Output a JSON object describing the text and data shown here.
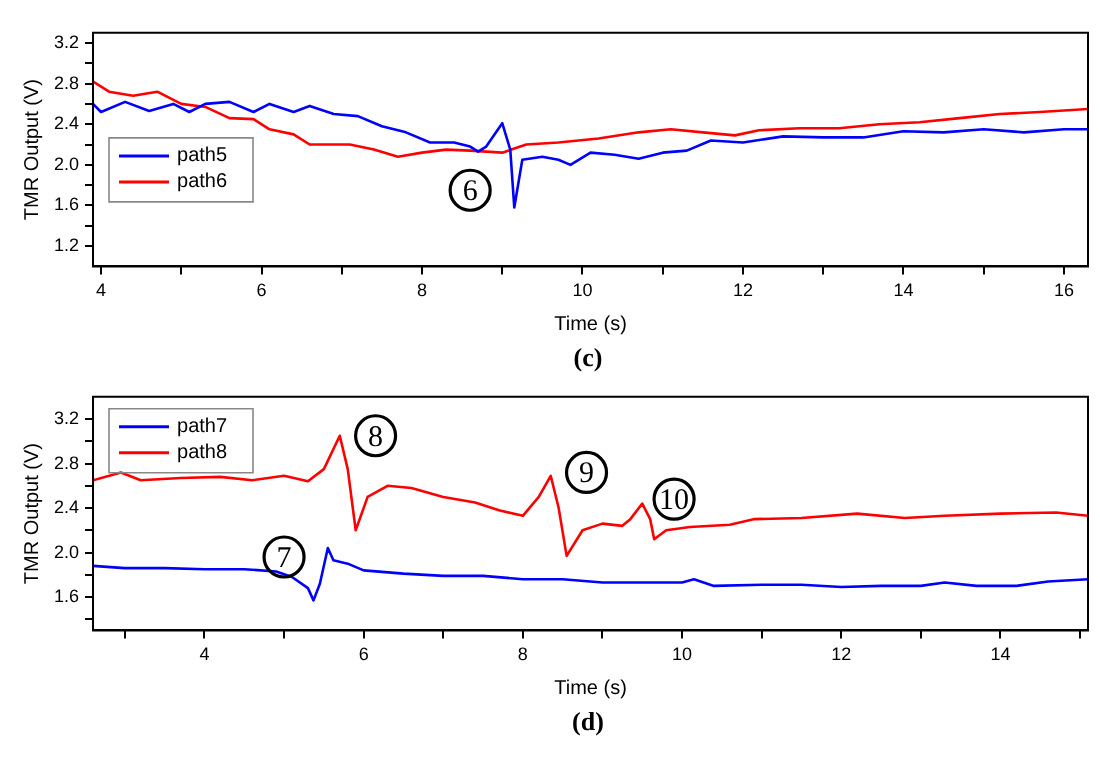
{
  "chart_data": [
    {
      "type": "line",
      "xlabel": "Time (s)",
      "ylabel": "TMR Output (V)",
      "legend": "left",
      "marker": "none",
      "line_style": "solid",
      "xlim": [
        3.9,
        16.3
      ],
      "ylim": [
        1.0,
        3.3
      ],
      "xticks": [
        4,
        {
          "value": 5,
          "label": null
        },
        6,
        {
          "value": 7,
          "label": null
        },
        8,
        {
          "value": 9,
          "label": null
        },
        10,
        {
          "value": 11,
          "label": null
        },
        12,
        {
          "value": 13,
          "label": null
        },
        14,
        {
          "value": 15,
          "label": null
        },
        16
      ],
      "yticks": [
        1.2,
        {
          "value": 1.4,
          "label": null
        },
        1.6,
        {
          "value": 1.8,
          "label": null
        },
        {
          "value": 2,
          "label": "2.0"
        },
        {
          "value": 2.2,
          "label": null
        },
        2.4,
        {
          "value": 2.6,
          "label": null
        },
        2.8,
        {
          "value": 3,
          "label": null
        },
        3.2
      ],
      "series": [
        {
          "name": "path5",
          "color": "#0000ff",
          "x": [
            3.9,
            4.0,
            4.3,
            4.6,
            4.9,
            5.1,
            5.3,
            5.6,
            5.9,
            6.1,
            6.4,
            6.6,
            6.9,
            7.2,
            7.5,
            7.8,
            8.1,
            8.4,
            8.6,
            8.7,
            8.8,
            9.0,
            9.1,
            9.15,
            9.25,
            9.5,
            9.7,
            9.85,
            10.1,
            10.4,
            10.7,
            11,
            11.3,
            11.6,
            12,
            12.5,
            13,
            13.5,
            14,
            14.5,
            15,
            15.5,
            16,
            16.3
          ],
          "values": [
            2.6,
            2.52,
            2.62,
            2.53,
            2.6,
            2.52,
            2.6,
            2.62,
            2.52,
            2.6,
            2.52,
            2.58,
            2.5,
            2.48,
            2.38,
            2.32,
            2.22,
            2.22,
            2.18,
            2.13,
            2.18,
            2.41,
            2.15,
            1.58,
            2.05,
            2.08,
            2.05,
            2.0,
            2.12,
            2.1,
            2.06,
            2.12,
            2.14,
            2.24,
            2.22,
            2.28,
            2.27,
            2.27,
            2.33,
            2.32,
            2.35,
            2.32,
            2.35,
            2.35
          ]
        },
        {
          "name": "path6",
          "color": "#ff0000",
          "x": [
            3.9,
            4.1,
            4.4,
            4.7,
            5.0,
            5.3,
            5.6,
            5.9,
            6.1,
            6.4,
            6.6,
            6.9,
            7.1,
            7.4,
            7.7,
            8.0,
            8.3,
            8.6,
            9.0,
            9.3,
            9.7,
            10.2,
            10.7,
            11.1,
            11.5,
            11.9,
            12.2,
            12.7,
            13.2,
            13.7,
            14.2,
            14.7,
            15.2,
            15.7,
            16.3
          ],
          "values": [
            2.82,
            2.72,
            2.68,
            2.72,
            2.6,
            2.57,
            2.46,
            2.45,
            2.35,
            2.3,
            2.2,
            2.2,
            2.2,
            2.15,
            2.08,
            2.12,
            2.15,
            2.14,
            2.12,
            2.2,
            2.22,
            2.26,
            2.32,
            2.35,
            2.32,
            2.29,
            2.34,
            2.36,
            2.36,
            2.4,
            2.42,
            2.46,
            2.5,
            2.52,
            2.55
          ]
        }
      ],
      "annotations": [
        {
          "text": "6",
          "x": 8.6,
          "y": 1.75
        },
        "(c)"
      ]
    },
    {
      "type": "line",
      "xlabel": "Time (s)",
      "ylabel": "TMR Output (V)",
      "legend": "top left",
      "marker": "none",
      "line_style": "solid",
      "xlim": [
        2.6,
        15.1
      ],
      "ylim": [
        1.3,
        3.4
      ],
      "xticks": [
        {
          "value": 3,
          "label": null
        },
        4,
        {
          "value": 5,
          "label": null
        },
        6,
        {
          "value": 7,
          "label": null
        },
        8,
        {
          "value": 9,
          "label": null
        },
        10,
        {
          "value": 11,
          "label": null
        },
        12,
        {
          "value": 13,
          "label": null
        },
        14,
        {
          "value": 15,
          "label": null
        }
      ],
      "yticks": [
        {
          "value": 1.4,
          "label": null
        },
        1.6,
        {
          "value": 1.8,
          "label": null
        },
        {
          "value": 2,
          "label": "2.0"
        },
        {
          "value": 2.2,
          "label": null
        },
        2.4,
        {
          "value": 2.6,
          "label": null
        },
        2.8,
        {
          "value": 3,
          "label": null
        },
        3.2
      ],
      "series": [
        {
          "name": "path7",
          "color": "#0000ff",
          "x": [
            2.6,
            3,
            3.5,
            4,
            4.5,
            4.9,
            5.1,
            5.3,
            5.37,
            5.45,
            5.55,
            5.62,
            5.8,
            6,
            6.5,
            7,
            7.5,
            8,
            8.5,
            9,
            9.5,
            10,
            10.15,
            10.4,
            11,
            11.5,
            12,
            12.5,
            13,
            13.3,
            13.7,
            14.2,
            14.6,
            15.1
          ],
          "values": [
            1.88,
            1.86,
            1.86,
            1.85,
            1.85,
            1.83,
            1.78,
            1.68,
            1.57,
            1.72,
            2.04,
            1.93,
            1.9,
            1.84,
            1.81,
            1.79,
            1.79,
            1.76,
            1.76,
            1.73,
            1.73,
            1.73,
            1.76,
            1.7,
            1.71,
            1.71,
            1.69,
            1.7,
            1.7,
            1.73,
            1.7,
            1.7,
            1.74,
            1.76
          ]
        },
        {
          "name": "path8",
          "color": "#ff0000",
          "x": [
            2.6,
            2.95,
            3.2,
            3.7,
            4.2,
            4.6,
            5,
            5.3,
            5.5,
            5.7,
            5.8,
            5.9,
            6.05,
            6.3,
            6.6,
            7,
            7.4,
            7.7,
            8,
            8.2,
            8.35,
            8.45,
            8.55,
            8.75,
            9,
            9.25,
            9.35,
            9.5,
            9.6,
            9.65,
            9.8,
            10.1,
            10.6,
            10.9,
            11.5,
            12.2,
            12.8,
            13.3,
            14,
            14.7,
            15.1
          ],
          "values": [
            2.65,
            2.72,
            2.65,
            2.67,
            2.68,
            2.65,
            2.69,
            2.64,
            2.75,
            3.05,
            2.75,
            2.2,
            2.5,
            2.6,
            2.58,
            2.5,
            2.45,
            2.38,
            2.33,
            2.5,
            2.69,
            2.4,
            1.97,
            2.2,
            2.26,
            2.24,
            2.3,
            2.44,
            2.3,
            2.12,
            2.2,
            2.23,
            2.25,
            2.3,
            2.31,
            2.35,
            2.31,
            2.33,
            2.35,
            2.36,
            2.33
          ]
        }
      ],
      "annotations": [
        {
          "text": "7",
          "x": 5.0,
          "y": 1.96
        },
        {
          "text": "8",
          "x": 6.15,
          "y": 3.05
        },
        {
          "text": "9",
          "x": 8.8,
          "y": 2.72
        },
        {
          "text": "10",
          "x": 9.9,
          "y": 2.48
        },
        "(d)"
      ]
    }
  ]
}
